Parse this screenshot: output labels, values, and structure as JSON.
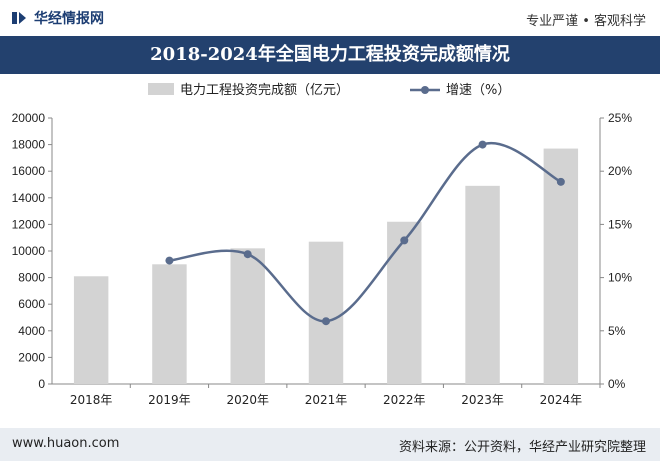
{
  "header": {
    "brand_name": "华经情报网",
    "slogan": "专业严谨 • 客观科学"
  },
  "title": "2018-2024年全国电力工程投资完成额情况",
  "footer": {
    "website": "www.huaon.com",
    "source": "资料来源：公开资料，华经产业研究院整理"
  },
  "colors": {
    "title_bg": "#23416e",
    "bar": "#d3d3d3",
    "line": "#5a6c8d",
    "brand": "#1d3e73"
  },
  "chart_data": {
    "type": "bar+line",
    "categories": [
      "2018年",
      "2019年",
      "2020年",
      "2021年",
      "2022年",
      "2023年",
      "2024年"
    ],
    "series": [
      {
        "name": "电力工程投资完成额（亿元）",
        "type": "bar",
        "axis": "left",
        "values": [
          8100,
          9000,
          10200,
          10700,
          12200,
          14900,
          17700
        ]
      },
      {
        "name": "增速（%）",
        "type": "line",
        "axis": "right",
        "values": [
          null,
          11.6,
          12.2,
          5.9,
          13.5,
          22.5,
          19.0
        ]
      }
    ],
    "y_left": {
      "min": 0,
      "max": 20000,
      "ticks": [
        "0",
        "2000",
        "4000",
        "6000",
        "8000",
        "10000",
        "12000",
        "14000",
        "16000",
        "18000",
        "20000"
      ]
    },
    "y_right": {
      "min": 0,
      "max": 25,
      "ticks": [
        "0%",
        "5%",
        "10%",
        "15%",
        "20%",
        "25%"
      ]
    },
    "legend_position": "top-center",
    "grid": false
  }
}
